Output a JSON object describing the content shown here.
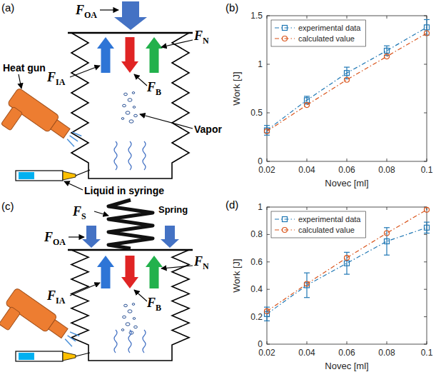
{
  "panel_labels": [
    "(a)",
    "(b)",
    "(c)",
    "(d)"
  ],
  "diagrams": [
    {
      "forces": [
        {
          "base": "F",
          "sub": "OA"
        },
        {
          "base": "F",
          "sub": "IA"
        },
        {
          "base": "F",
          "sub": "N"
        },
        {
          "base": "F",
          "sub": "B"
        }
      ],
      "labels": [
        "Heat gun",
        "Vapor",
        "Liquid in syringe"
      ]
    },
    {
      "forces": [
        {
          "base": "F",
          "sub": "S"
        },
        {
          "base": "F",
          "sub": "OA"
        },
        {
          "base": "F",
          "sub": "IA"
        },
        {
          "base": "F",
          "sub": "B"
        },
        {
          "base": "F",
          "sub": "N"
        }
      ],
      "labels": [
        "Spring"
      ]
    }
  ],
  "chart_data": [
    {
      "type": "line",
      "x_label": "Novec [ml]",
      "y_label": "Work [J]",
      "x": [
        0.02,
        0.04,
        0.06,
        0.08,
        0.1
      ],
      "xlim": [
        0.02,
        0.1
      ],
      "xticks": [
        0.02,
        0.04,
        0.06,
        0.08,
        0.1
      ],
      "ylim": [
        0,
        1.5
      ],
      "yticks": [
        0,
        0.5,
        1,
        1.5
      ],
      "grid": false,
      "legend": "upper-left",
      "series": [
        {
          "name": "experimental data",
          "color": "#1f77b4",
          "marker": "square",
          "line_style": "dashdot",
          "values": [
            0.32,
            0.63,
            0.91,
            1.14,
            1.38
          ],
          "errors": [
            0.05,
            0.04,
            0.06,
            0.05,
            0.08
          ]
        },
        {
          "name": "calculated value",
          "color": "#d95319",
          "marker": "circle",
          "line_style": "dashdot",
          "values": [
            0.31,
            0.58,
            0.84,
            1.08,
            1.32
          ]
        }
      ]
    },
    {
      "type": "line",
      "x_label": "Novec [ml]",
      "y_label": "Work [J]",
      "x": [
        0.02,
        0.04,
        0.06,
        0.08,
        0.1
      ],
      "xlim": [
        0.02,
        0.1
      ],
      "xticks": [
        0.02,
        0.04,
        0.06,
        0.08,
        0.1
      ],
      "ylim": [
        0,
        1
      ],
      "yticks": [
        0,
        0.2,
        0.4,
        0.6,
        0.8,
        1
      ],
      "grid": false,
      "legend": "upper-left",
      "series": [
        {
          "name": "experimental data",
          "color": "#1f77b4",
          "marker": "square",
          "line_style": "dashdot",
          "values": [
            0.22,
            0.43,
            0.59,
            0.75,
            0.85
          ],
          "errors": [
            0.05,
            0.09,
            0.08,
            0.1,
            0.04
          ]
        },
        {
          "name": "calculated value",
          "color": "#d95319",
          "marker": "circle",
          "line_style": "dashdot",
          "values": [
            0.24,
            0.44,
            0.63,
            0.81,
            0.98
          ]
        }
      ]
    }
  ]
}
